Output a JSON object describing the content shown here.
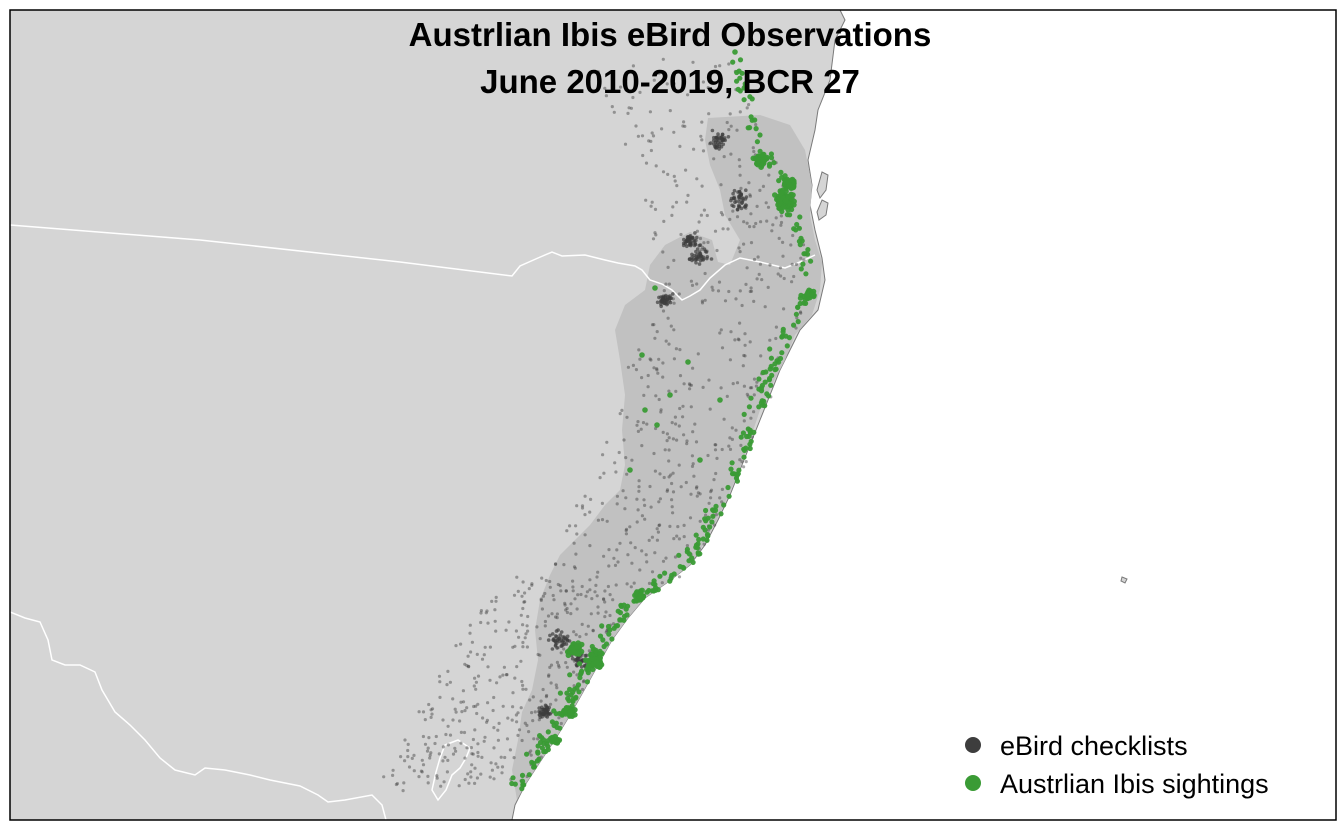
{
  "title": {
    "line1": "Austrlian Ibis eBird Observations",
    "line2": "June 2010-2019, BCR 27"
  },
  "legend": {
    "position": "bottom-right",
    "items": [
      {
        "label": "eBird checklists",
        "color": "#3d3d3d"
      },
      {
        "label": "Austrlian Ibis sightings",
        "color": "#3a9b35"
      }
    ]
  },
  "colors": {
    "ocean": "#ffffff",
    "land": "#d5d5d5",
    "bcr_region": "#c1c1c1",
    "state_border": "#ffffff",
    "coastline": "#7a7a7a",
    "checklist": "#3d3d3d",
    "sighting": "#3a9b35"
  }
}
